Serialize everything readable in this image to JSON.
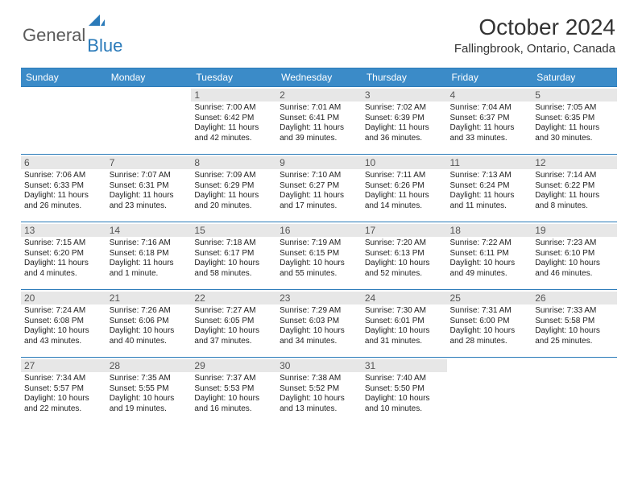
{
  "brand": {
    "part1": "General",
    "part2": "Blue"
  },
  "title": "October 2024",
  "location": "Fallingbrook, Ontario, Canada",
  "colors": {
    "header_bg": "#3b8bc8",
    "header_text": "#ffffff",
    "border": "#2a7ab9",
    "daynum_bg": "#e7e7e7",
    "daynum_text": "#555555",
    "body_text": "#222222",
    "logo_gray": "#5a5a5a",
    "logo_blue": "#2a7ab9"
  },
  "day_headers": [
    "Sunday",
    "Monday",
    "Tuesday",
    "Wednesday",
    "Thursday",
    "Friday",
    "Saturday"
  ],
  "typography": {
    "title_fontsize": 28,
    "location_fontsize": 15,
    "header_fontsize": 12,
    "daynum_fontsize": 12,
    "cell_fontsize": 10
  },
  "weeks": [
    [
      null,
      null,
      {
        "n": "1",
        "sunrise": "Sunrise: 7:00 AM",
        "sunset": "Sunset: 6:42 PM",
        "day1": "Daylight: 11 hours",
        "day2": "and 42 minutes."
      },
      {
        "n": "2",
        "sunrise": "Sunrise: 7:01 AM",
        "sunset": "Sunset: 6:41 PM",
        "day1": "Daylight: 11 hours",
        "day2": "and 39 minutes."
      },
      {
        "n": "3",
        "sunrise": "Sunrise: 7:02 AM",
        "sunset": "Sunset: 6:39 PM",
        "day1": "Daylight: 11 hours",
        "day2": "and 36 minutes."
      },
      {
        "n": "4",
        "sunrise": "Sunrise: 7:04 AM",
        "sunset": "Sunset: 6:37 PM",
        "day1": "Daylight: 11 hours",
        "day2": "and 33 minutes."
      },
      {
        "n": "5",
        "sunrise": "Sunrise: 7:05 AM",
        "sunset": "Sunset: 6:35 PM",
        "day1": "Daylight: 11 hours",
        "day2": "and 30 minutes."
      }
    ],
    [
      {
        "n": "6",
        "sunrise": "Sunrise: 7:06 AM",
        "sunset": "Sunset: 6:33 PM",
        "day1": "Daylight: 11 hours",
        "day2": "and 26 minutes."
      },
      {
        "n": "7",
        "sunrise": "Sunrise: 7:07 AM",
        "sunset": "Sunset: 6:31 PM",
        "day1": "Daylight: 11 hours",
        "day2": "and 23 minutes."
      },
      {
        "n": "8",
        "sunrise": "Sunrise: 7:09 AM",
        "sunset": "Sunset: 6:29 PM",
        "day1": "Daylight: 11 hours",
        "day2": "and 20 minutes."
      },
      {
        "n": "9",
        "sunrise": "Sunrise: 7:10 AM",
        "sunset": "Sunset: 6:27 PM",
        "day1": "Daylight: 11 hours",
        "day2": "and 17 minutes."
      },
      {
        "n": "10",
        "sunrise": "Sunrise: 7:11 AM",
        "sunset": "Sunset: 6:26 PM",
        "day1": "Daylight: 11 hours",
        "day2": "and 14 minutes."
      },
      {
        "n": "11",
        "sunrise": "Sunrise: 7:13 AM",
        "sunset": "Sunset: 6:24 PM",
        "day1": "Daylight: 11 hours",
        "day2": "and 11 minutes."
      },
      {
        "n": "12",
        "sunrise": "Sunrise: 7:14 AM",
        "sunset": "Sunset: 6:22 PM",
        "day1": "Daylight: 11 hours",
        "day2": "and 8 minutes."
      }
    ],
    [
      {
        "n": "13",
        "sunrise": "Sunrise: 7:15 AM",
        "sunset": "Sunset: 6:20 PM",
        "day1": "Daylight: 11 hours",
        "day2": "and 4 minutes."
      },
      {
        "n": "14",
        "sunrise": "Sunrise: 7:16 AM",
        "sunset": "Sunset: 6:18 PM",
        "day1": "Daylight: 11 hours",
        "day2": "and 1 minute."
      },
      {
        "n": "15",
        "sunrise": "Sunrise: 7:18 AM",
        "sunset": "Sunset: 6:17 PM",
        "day1": "Daylight: 10 hours",
        "day2": "and 58 minutes."
      },
      {
        "n": "16",
        "sunrise": "Sunrise: 7:19 AM",
        "sunset": "Sunset: 6:15 PM",
        "day1": "Daylight: 10 hours",
        "day2": "and 55 minutes."
      },
      {
        "n": "17",
        "sunrise": "Sunrise: 7:20 AM",
        "sunset": "Sunset: 6:13 PM",
        "day1": "Daylight: 10 hours",
        "day2": "and 52 minutes."
      },
      {
        "n": "18",
        "sunrise": "Sunrise: 7:22 AM",
        "sunset": "Sunset: 6:11 PM",
        "day1": "Daylight: 10 hours",
        "day2": "and 49 minutes."
      },
      {
        "n": "19",
        "sunrise": "Sunrise: 7:23 AM",
        "sunset": "Sunset: 6:10 PM",
        "day1": "Daylight: 10 hours",
        "day2": "and 46 minutes."
      }
    ],
    [
      {
        "n": "20",
        "sunrise": "Sunrise: 7:24 AM",
        "sunset": "Sunset: 6:08 PM",
        "day1": "Daylight: 10 hours",
        "day2": "and 43 minutes."
      },
      {
        "n": "21",
        "sunrise": "Sunrise: 7:26 AM",
        "sunset": "Sunset: 6:06 PM",
        "day1": "Daylight: 10 hours",
        "day2": "and 40 minutes."
      },
      {
        "n": "22",
        "sunrise": "Sunrise: 7:27 AM",
        "sunset": "Sunset: 6:05 PM",
        "day1": "Daylight: 10 hours",
        "day2": "and 37 minutes."
      },
      {
        "n": "23",
        "sunrise": "Sunrise: 7:29 AM",
        "sunset": "Sunset: 6:03 PM",
        "day1": "Daylight: 10 hours",
        "day2": "and 34 minutes."
      },
      {
        "n": "24",
        "sunrise": "Sunrise: 7:30 AM",
        "sunset": "Sunset: 6:01 PM",
        "day1": "Daylight: 10 hours",
        "day2": "and 31 minutes."
      },
      {
        "n": "25",
        "sunrise": "Sunrise: 7:31 AM",
        "sunset": "Sunset: 6:00 PM",
        "day1": "Daylight: 10 hours",
        "day2": "and 28 minutes."
      },
      {
        "n": "26",
        "sunrise": "Sunrise: 7:33 AM",
        "sunset": "Sunset: 5:58 PM",
        "day1": "Daylight: 10 hours",
        "day2": "and 25 minutes."
      }
    ],
    [
      {
        "n": "27",
        "sunrise": "Sunrise: 7:34 AM",
        "sunset": "Sunset: 5:57 PM",
        "day1": "Daylight: 10 hours",
        "day2": "and 22 minutes."
      },
      {
        "n": "28",
        "sunrise": "Sunrise: 7:35 AM",
        "sunset": "Sunset: 5:55 PM",
        "day1": "Daylight: 10 hours",
        "day2": "and 19 minutes."
      },
      {
        "n": "29",
        "sunrise": "Sunrise: 7:37 AM",
        "sunset": "Sunset: 5:53 PM",
        "day1": "Daylight: 10 hours",
        "day2": "and 16 minutes."
      },
      {
        "n": "30",
        "sunrise": "Sunrise: 7:38 AM",
        "sunset": "Sunset: 5:52 PM",
        "day1": "Daylight: 10 hours",
        "day2": "and 13 minutes."
      },
      {
        "n": "31",
        "sunrise": "Sunrise: 7:40 AM",
        "sunset": "Sunset: 5:50 PM",
        "day1": "Daylight: 10 hours",
        "day2": "and 10 minutes."
      },
      null,
      null
    ]
  ]
}
